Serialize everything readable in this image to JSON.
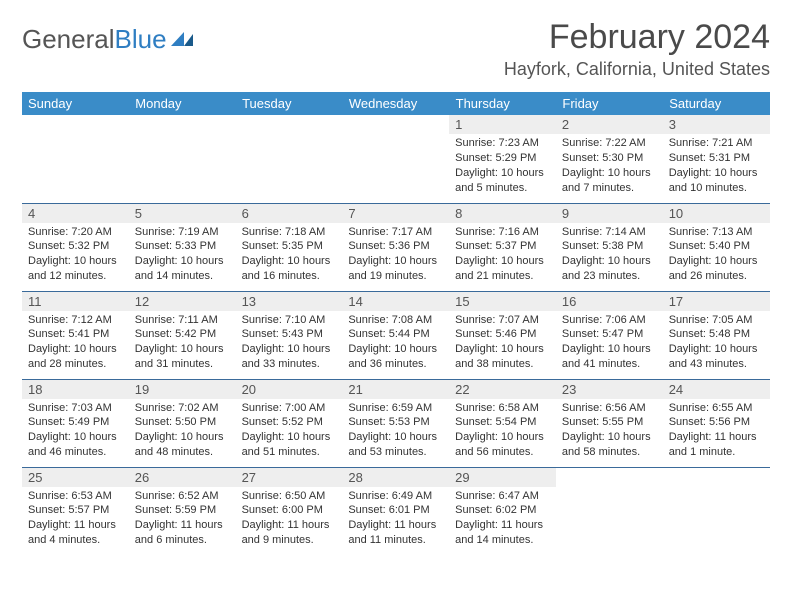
{
  "logo": {
    "text1": "General",
    "text2": "Blue"
  },
  "title": "February 2024",
  "location": "Hayfork, California, United States",
  "colors": {
    "header_bg": "#3a8cc8",
    "header_text": "#ffffff",
    "row_divider": "#3a6a9a",
    "daynum_bg": "#eeeeee",
    "text": "#333333",
    "logo_gray": "#555555",
    "logo_blue": "#2f7ec2",
    "page_bg": "#ffffff"
  },
  "typography": {
    "title_fontsize": 34,
    "location_fontsize": 18,
    "header_fontsize": 13,
    "daynum_fontsize": 13,
    "body_fontsize": 11
  },
  "weekdays": [
    "Sunday",
    "Monday",
    "Tuesday",
    "Wednesday",
    "Thursday",
    "Friday",
    "Saturday"
  ],
  "weeks": [
    [
      null,
      null,
      null,
      null,
      {
        "n": "1",
        "sunrise": "Sunrise: 7:23 AM",
        "sunset": "Sunset: 5:29 PM",
        "day1": "Daylight: 10 hours",
        "day2": "and 5 minutes."
      },
      {
        "n": "2",
        "sunrise": "Sunrise: 7:22 AM",
        "sunset": "Sunset: 5:30 PM",
        "day1": "Daylight: 10 hours",
        "day2": "and 7 minutes."
      },
      {
        "n": "3",
        "sunrise": "Sunrise: 7:21 AM",
        "sunset": "Sunset: 5:31 PM",
        "day1": "Daylight: 10 hours",
        "day2": "and 10 minutes."
      }
    ],
    [
      {
        "n": "4",
        "sunrise": "Sunrise: 7:20 AM",
        "sunset": "Sunset: 5:32 PM",
        "day1": "Daylight: 10 hours",
        "day2": "and 12 minutes."
      },
      {
        "n": "5",
        "sunrise": "Sunrise: 7:19 AM",
        "sunset": "Sunset: 5:33 PM",
        "day1": "Daylight: 10 hours",
        "day2": "and 14 minutes."
      },
      {
        "n": "6",
        "sunrise": "Sunrise: 7:18 AM",
        "sunset": "Sunset: 5:35 PM",
        "day1": "Daylight: 10 hours",
        "day2": "and 16 minutes."
      },
      {
        "n": "7",
        "sunrise": "Sunrise: 7:17 AM",
        "sunset": "Sunset: 5:36 PM",
        "day1": "Daylight: 10 hours",
        "day2": "and 19 minutes."
      },
      {
        "n": "8",
        "sunrise": "Sunrise: 7:16 AM",
        "sunset": "Sunset: 5:37 PM",
        "day1": "Daylight: 10 hours",
        "day2": "and 21 minutes."
      },
      {
        "n": "9",
        "sunrise": "Sunrise: 7:14 AM",
        "sunset": "Sunset: 5:38 PM",
        "day1": "Daylight: 10 hours",
        "day2": "and 23 minutes."
      },
      {
        "n": "10",
        "sunrise": "Sunrise: 7:13 AM",
        "sunset": "Sunset: 5:40 PM",
        "day1": "Daylight: 10 hours",
        "day2": "and 26 minutes."
      }
    ],
    [
      {
        "n": "11",
        "sunrise": "Sunrise: 7:12 AM",
        "sunset": "Sunset: 5:41 PM",
        "day1": "Daylight: 10 hours",
        "day2": "and 28 minutes."
      },
      {
        "n": "12",
        "sunrise": "Sunrise: 7:11 AM",
        "sunset": "Sunset: 5:42 PM",
        "day1": "Daylight: 10 hours",
        "day2": "and 31 minutes."
      },
      {
        "n": "13",
        "sunrise": "Sunrise: 7:10 AM",
        "sunset": "Sunset: 5:43 PM",
        "day1": "Daylight: 10 hours",
        "day2": "and 33 minutes."
      },
      {
        "n": "14",
        "sunrise": "Sunrise: 7:08 AM",
        "sunset": "Sunset: 5:44 PM",
        "day1": "Daylight: 10 hours",
        "day2": "and 36 minutes."
      },
      {
        "n": "15",
        "sunrise": "Sunrise: 7:07 AM",
        "sunset": "Sunset: 5:46 PM",
        "day1": "Daylight: 10 hours",
        "day2": "and 38 minutes."
      },
      {
        "n": "16",
        "sunrise": "Sunrise: 7:06 AM",
        "sunset": "Sunset: 5:47 PM",
        "day1": "Daylight: 10 hours",
        "day2": "and 41 minutes."
      },
      {
        "n": "17",
        "sunrise": "Sunrise: 7:05 AM",
        "sunset": "Sunset: 5:48 PM",
        "day1": "Daylight: 10 hours",
        "day2": "and 43 minutes."
      }
    ],
    [
      {
        "n": "18",
        "sunrise": "Sunrise: 7:03 AM",
        "sunset": "Sunset: 5:49 PM",
        "day1": "Daylight: 10 hours",
        "day2": "and 46 minutes."
      },
      {
        "n": "19",
        "sunrise": "Sunrise: 7:02 AM",
        "sunset": "Sunset: 5:50 PM",
        "day1": "Daylight: 10 hours",
        "day2": "and 48 minutes."
      },
      {
        "n": "20",
        "sunrise": "Sunrise: 7:00 AM",
        "sunset": "Sunset: 5:52 PM",
        "day1": "Daylight: 10 hours",
        "day2": "and 51 minutes."
      },
      {
        "n": "21",
        "sunrise": "Sunrise: 6:59 AM",
        "sunset": "Sunset: 5:53 PM",
        "day1": "Daylight: 10 hours",
        "day2": "and 53 minutes."
      },
      {
        "n": "22",
        "sunrise": "Sunrise: 6:58 AM",
        "sunset": "Sunset: 5:54 PM",
        "day1": "Daylight: 10 hours",
        "day2": "and 56 minutes."
      },
      {
        "n": "23",
        "sunrise": "Sunrise: 6:56 AM",
        "sunset": "Sunset: 5:55 PM",
        "day1": "Daylight: 10 hours",
        "day2": "and 58 minutes."
      },
      {
        "n": "24",
        "sunrise": "Sunrise: 6:55 AM",
        "sunset": "Sunset: 5:56 PM",
        "day1": "Daylight: 11 hours",
        "day2": "and 1 minute."
      }
    ],
    [
      {
        "n": "25",
        "sunrise": "Sunrise: 6:53 AM",
        "sunset": "Sunset: 5:57 PM",
        "day1": "Daylight: 11 hours",
        "day2": "and 4 minutes."
      },
      {
        "n": "26",
        "sunrise": "Sunrise: 6:52 AM",
        "sunset": "Sunset: 5:59 PM",
        "day1": "Daylight: 11 hours",
        "day2": "and 6 minutes."
      },
      {
        "n": "27",
        "sunrise": "Sunrise: 6:50 AM",
        "sunset": "Sunset: 6:00 PM",
        "day1": "Daylight: 11 hours",
        "day2": "and 9 minutes."
      },
      {
        "n": "28",
        "sunrise": "Sunrise: 6:49 AM",
        "sunset": "Sunset: 6:01 PM",
        "day1": "Daylight: 11 hours",
        "day2": "and 11 minutes."
      },
      {
        "n": "29",
        "sunrise": "Sunrise: 6:47 AM",
        "sunset": "Sunset: 6:02 PM",
        "day1": "Daylight: 11 hours",
        "day2": "and 14 minutes."
      },
      null,
      null
    ]
  ]
}
